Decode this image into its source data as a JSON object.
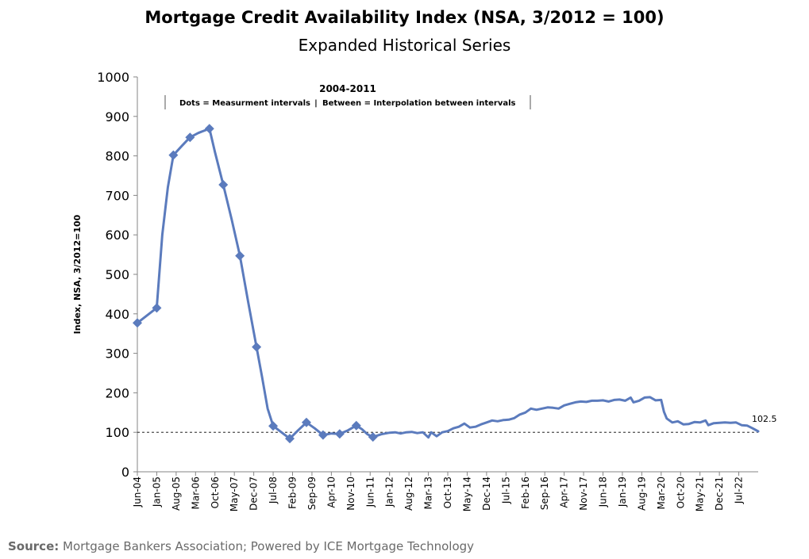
{
  "chart_data": {
    "type": "line",
    "title": "Mortgage Credit Availability Index (NSA, 3/2012 = 100)",
    "subtitle": "Expanded Historical Series",
    "ylabel": "Index, NSA, 3/2012=100",
    "xlabel": "",
    "ylim": [
      0,
      1000
    ],
    "yticks": [
      0,
      100,
      200,
      300,
      400,
      500,
      600,
      700,
      800,
      900,
      1000
    ],
    "xticks": [
      "Jun-04",
      "Jan-05",
      "Aug-05",
      "Mar-06",
      "Oct-06",
      "May-07",
      "Dec-07",
      "Jul-08",
      "Feb-09",
      "Sep-09",
      "Apr-10",
      "Nov-10",
      "Jun-11",
      "Jan-12",
      "Aug-12",
      "Mar-13",
      "Oct-13",
      "May-14",
      "Dec-14",
      "Jul-15",
      "Feb-16",
      "Sep-16",
      "Apr-17",
      "Nov-17",
      "Jun-18",
      "Jan-19",
      "Aug-19",
      "Mar-20",
      "Oct-20",
      "May-21",
      "Dec-21",
      "Jul-22"
    ],
    "annotation": {
      "heading": "2004-2011",
      "note_left": "Dots = Measurment intervals",
      "separator": "|",
      "note_right": "Between = Interpolation between intervals"
    },
    "reference_line": 100,
    "last_value_label": "102.5",
    "color": "#5b7bbd",
    "markers": [
      {
        "x": "2004-06",
        "y": 377
      },
      {
        "x": "2005-01",
        "y": 415
      },
      {
        "x": "2005-07",
        "y": 802
      },
      {
        "x": "2006-01",
        "y": 847
      },
      {
        "x": "2006-08",
        "y": 869
      },
      {
        "x": "2007-01",
        "y": 727
      },
      {
        "x": "2007-07",
        "y": 547
      },
      {
        "x": "2008-01",
        "y": 316
      },
      {
        "x": "2008-07",
        "y": 116
      },
      {
        "x": "2009-01",
        "y": 84
      },
      {
        "x": "2009-07",
        "y": 125
      },
      {
        "x": "2010-01",
        "y": 93
      },
      {
        "x": "2010-07",
        "y": 96
      },
      {
        "x": "2011-01",
        "y": 117
      },
      {
        "x": "2011-07",
        "y": 88
      }
    ],
    "series": [
      {
        "points": [
          [
            "2004-06",
            377
          ],
          [
            "2005-01",
            415
          ],
          [
            "2005-03",
            600
          ],
          [
            "2005-05",
            720
          ],
          [
            "2005-07",
            802
          ],
          [
            "2005-10",
            825
          ],
          [
            "2006-01",
            847
          ],
          [
            "2006-04",
            858
          ],
          [
            "2006-08",
            869
          ],
          [
            "2006-10",
            810
          ],
          [
            "2007-01",
            727
          ],
          [
            "2007-04",
            640
          ],
          [
            "2007-07",
            547
          ],
          [
            "2007-10",
            430
          ],
          [
            "2008-01",
            316
          ],
          [
            "2008-03",
            240
          ],
          [
            "2008-05",
            160
          ],
          [
            "2008-07",
            116
          ],
          [
            "2008-10",
            100
          ],
          [
            "2009-01",
            84
          ],
          [
            "2009-04",
            105
          ],
          [
            "2009-07",
            125
          ],
          [
            "2009-10",
            110
          ],
          [
            "2010-01",
            93
          ],
          [
            "2010-04",
            97
          ],
          [
            "2010-07",
            96
          ],
          [
            "2010-10",
            105
          ],
          [
            "2011-01",
            117
          ],
          [
            "2011-03",
            108
          ],
          [
            "2011-05",
            95
          ],
          [
            "2011-07",
            88
          ],
          [
            "2011-10",
            95
          ],
          [
            "2012-01",
            99
          ],
          [
            "2012-03",
            100
          ],
          [
            "2012-05",
            97
          ],
          [
            "2012-07",
            100
          ],
          [
            "2012-09",
            101
          ],
          [
            "2012-11",
            98
          ],
          [
            "2013-01",
            100
          ],
          [
            "2013-03",
            87
          ],
          [
            "2013-04",
            100
          ],
          [
            "2013-06",
            90
          ],
          [
            "2013-08",
            100
          ],
          [
            "2013-10",
            103
          ],
          [
            "2013-12",
            110
          ],
          [
            "2014-02",
            114
          ],
          [
            "2014-04",
            122
          ],
          [
            "2014-06",
            112
          ],
          [
            "2014-08",
            114
          ],
          [
            "2014-10",
            120
          ],
          [
            "2014-12",
            125
          ],
          [
            "2015-02",
            130
          ],
          [
            "2015-04",
            128
          ],
          [
            "2015-06",
            131
          ],
          [
            "2015-08",
            132
          ],
          [
            "2015-10",
            136
          ],
          [
            "2015-12",
            145
          ],
          [
            "2016-02",
            150
          ],
          [
            "2016-04",
            160
          ],
          [
            "2016-06",
            157
          ],
          [
            "2016-08",
            160
          ],
          [
            "2016-10",
            163
          ],
          [
            "2016-12",
            162
          ],
          [
            "2017-02",
            160
          ],
          [
            "2017-04",
            168
          ],
          [
            "2017-06",
            172
          ],
          [
            "2017-08",
            176
          ],
          [
            "2017-10",
            178
          ],
          [
            "2017-12",
            177
          ],
          [
            "2018-02",
            180
          ],
          [
            "2018-04",
            180
          ],
          [
            "2018-06",
            181
          ],
          [
            "2018-08",
            178
          ],
          [
            "2018-10",
            182
          ],
          [
            "2018-12",
            183
          ],
          [
            "2019-02",
            180
          ],
          [
            "2019-04",
            188
          ],
          [
            "2019-05",
            176
          ],
          [
            "2019-07",
            180
          ],
          [
            "2019-09",
            188
          ],
          [
            "2019-11",
            189
          ],
          [
            "2020-01",
            181
          ],
          [
            "2020-03",
            182
          ],
          [
            "2020-04",
            152
          ],
          [
            "2020-05",
            135
          ],
          [
            "2020-07",
            125
          ],
          [
            "2020-09",
            128
          ],
          [
            "2020-11",
            120
          ],
          [
            "2021-01",
            121
          ],
          [
            "2021-03",
            126
          ],
          [
            "2021-05",
            125
          ],
          [
            "2021-07",
            130
          ],
          [
            "2021-08",
            118
          ],
          [
            "2021-10",
            123
          ],
          [
            "2021-12",
            124
          ],
          [
            "2022-02",
            125
          ],
          [
            "2022-04",
            124
          ],
          [
            "2022-06",
            125
          ],
          [
            "2022-08",
            118
          ],
          [
            "2022-10",
            117
          ],
          [
            "2022-12",
            110
          ],
          [
            "2023-02",
            102.5
          ]
        ]
      }
    ]
  },
  "source": {
    "label": "Source:",
    "text": "Mortgage Bankers Association; Powered by ICE Mortgage Technology"
  }
}
